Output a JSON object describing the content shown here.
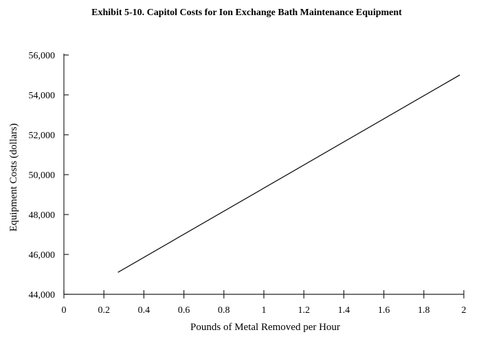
{
  "chart_data": {
    "type": "line",
    "title": "Exhibit 5-10. Capitol Costs for Ion Exchange Bath Maintenance Equipment",
    "xlabel": "Pounds of Metal Removed per Hour",
    "ylabel": "Equipment Costs (dollars)",
    "xlim": [
      0,
      2
    ],
    "ylim": [
      44000,
      56000
    ],
    "x_ticks": [
      0,
      0.2,
      0.4,
      0.6,
      0.8,
      1,
      1.2,
      1.4,
      1.6,
      1.8,
      2
    ],
    "x_tick_labels": [
      "0",
      "0.2",
      "0.4",
      "0.6",
      "0.8",
      "1",
      "1.2",
      "1.4",
      "1.6",
      "1.8",
      "2"
    ],
    "y_ticks": [
      44000,
      46000,
      48000,
      50000,
      52000,
      54000,
      56000
    ],
    "y_tick_labels": [
      "44,000",
      "46,000",
      "48,000",
      "50,000",
      "52,000",
      "54,000",
      "56,000"
    ],
    "grid": false,
    "series": [
      {
        "x": [
          0.27,
          1.98
        ],
        "y": [
          45100,
          55000
        ]
      }
    ],
    "colors": {
      "line": "#111111",
      "axis": "#222222"
    }
  }
}
